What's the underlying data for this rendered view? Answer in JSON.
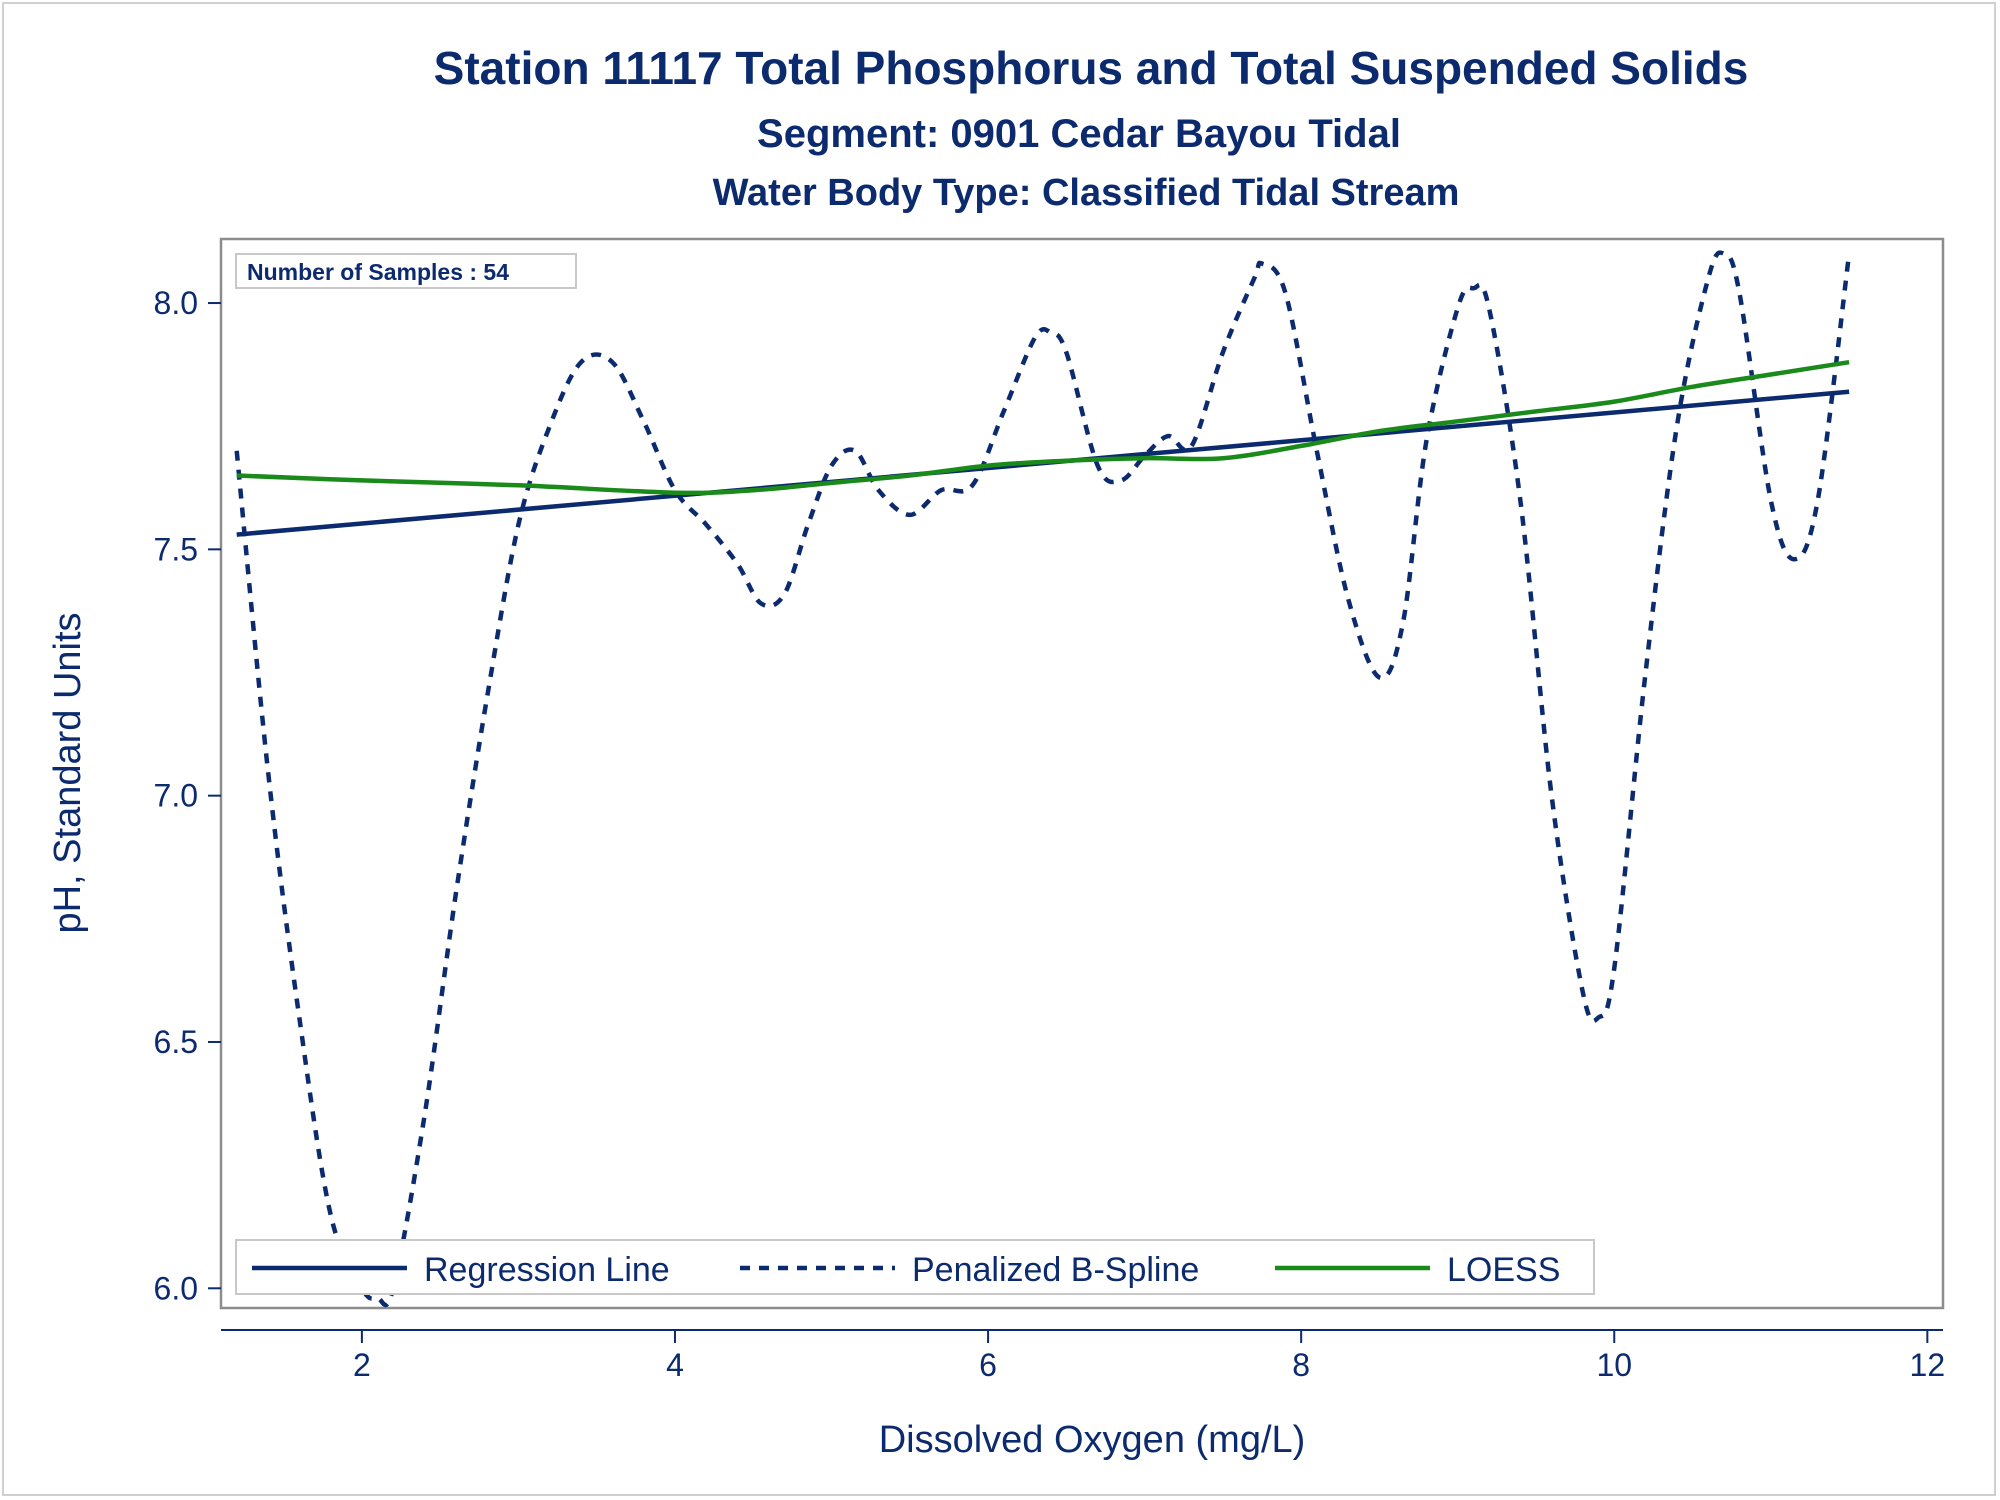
{
  "chart_data": {
    "type": "line",
    "title": "Station 11117  Total Phosphorus and Total Suspended Solids",
    "subtitle": "Segment: 0901  Cedar Bayou Tidal",
    "subtitle2": "Water Body Type: Classified Tidal Stream",
    "xlabel": "Dissolved Oxygen (mg/L)",
    "ylabel": "pH, Standard Units",
    "xlim": [
      1.1,
      12.1
    ],
    "ylim": [
      5.96,
      8.13
    ],
    "xticks": [
      2,
      4,
      6,
      8,
      10,
      12
    ],
    "yticks": [
      6.0,
      6.5,
      7.0,
      7.5,
      8.0
    ],
    "xtick_labels": [
      "2",
      "4",
      "6",
      "8",
      "10",
      "12"
    ],
    "ytick_labels": [
      "6.0",
      "6.5",
      "7.0",
      "7.5",
      "8.0"
    ],
    "annotation": "Number of Samples : 54",
    "grid": false,
    "legend_position": "bottom-left inside",
    "series": [
      {
        "name": "Regression Line",
        "style": "solid",
        "color": "#0c2a6e",
        "x": [
          1.2,
          11.5
        ],
        "y": [
          7.53,
          7.82
        ]
      },
      {
        "name": "Penalized B-Spline",
        "style": "dashed",
        "color": "#0c2a6e",
        "x": [
          1.2,
          1.4,
          1.6,
          1.8,
          2.0,
          2.1,
          2.2,
          2.4,
          2.6,
          2.8,
          3.0,
          3.2,
          3.4,
          3.6,
          3.8,
          4.0,
          4.2,
          4.4,
          4.55,
          4.7,
          4.85,
          5.0,
          5.15,
          5.3,
          5.5,
          5.7,
          5.9,
          6.1,
          6.3,
          6.4,
          6.5,
          6.7,
          6.85,
          7.0,
          7.15,
          7.3,
          7.5,
          7.7,
          7.75,
          7.9,
          8.1,
          8.3,
          8.5,
          8.65,
          8.8,
          9.0,
          9.1,
          9.2,
          9.4,
          9.6,
          9.8,
          9.9,
          10.0,
          10.2,
          10.4,
          10.6,
          10.7,
          10.8,
          11.0,
          11.15,
          11.3,
          11.5
        ],
        "y": [
          7.7,
          7.05,
          6.55,
          6.15,
          6.0,
          5.98,
          6.0,
          6.35,
          6.8,
          7.2,
          7.55,
          7.75,
          7.88,
          7.88,
          7.76,
          7.62,
          7.55,
          7.47,
          7.39,
          7.41,
          7.55,
          7.67,
          7.7,
          7.62,
          7.57,
          7.62,
          7.63,
          7.78,
          7.93,
          7.94,
          7.9,
          7.67,
          7.64,
          7.69,
          7.73,
          7.71,
          7.9,
          8.05,
          8.08,
          8.02,
          7.7,
          7.4,
          7.24,
          7.35,
          7.72,
          7.99,
          8.03,
          7.99,
          7.6,
          7.0,
          6.6,
          6.55,
          6.65,
          7.25,
          7.75,
          8.05,
          8.1,
          8.02,
          7.6,
          7.48,
          7.6,
          8.1
        ]
      },
      {
        "name": "LOESS",
        "style": "solid",
        "color": "#1a8a1a",
        "x": [
          1.2,
          2.0,
          3.0,
          4.0,
          4.5,
          5.0,
          5.5,
          6.0,
          6.5,
          7.0,
          7.5,
          8.0,
          8.5,
          9.0,
          9.5,
          10.0,
          10.5,
          11.0,
          11.5
        ],
        "y": [
          7.65,
          7.64,
          7.63,
          7.615,
          7.62,
          7.635,
          7.65,
          7.67,
          7.68,
          7.685,
          7.685,
          7.71,
          7.74,
          7.76,
          7.78,
          7.8,
          7.83,
          7.855,
          7.88
        ]
      }
    ]
  }
}
